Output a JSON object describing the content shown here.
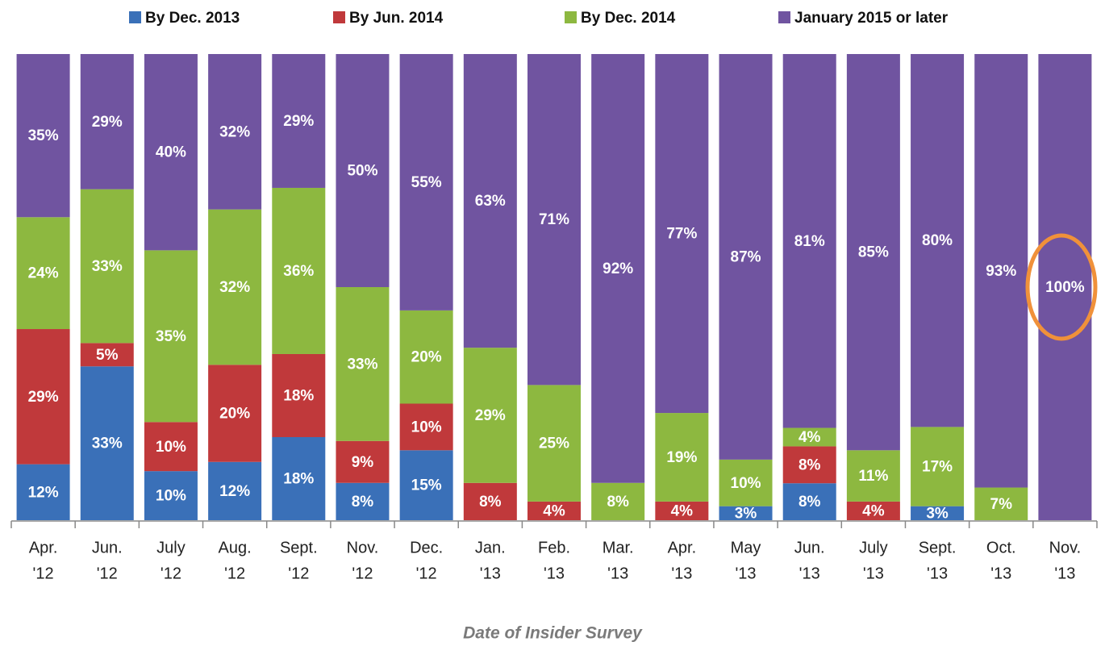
{
  "chart_data": {
    "type": "stacked_bar",
    "x_label": "Date of Insider Survey",
    "categories": [
      [
        "Apr.",
        "'12"
      ],
      [
        "Jun.",
        "'12"
      ],
      [
        "July",
        "'12"
      ],
      [
        "Aug.",
        "'12"
      ],
      [
        "Sept.",
        "'12"
      ],
      [
        "Nov.",
        "'12"
      ],
      [
        "Dec.",
        "'12"
      ],
      [
        "Jan.",
        "'13"
      ],
      [
        "Feb.",
        "'13"
      ],
      [
        "Mar.",
        "'13"
      ],
      [
        "Apr.",
        "'13"
      ],
      [
        "May",
        "'13"
      ],
      [
        "Jun.",
        "'13"
      ],
      [
        "July",
        "'13"
      ],
      [
        "Sept.",
        "'13"
      ],
      [
        "Oct.",
        "'13"
      ],
      [
        "Nov.",
        "'13"
      ]
    ],
    "series": [
      {
        "name": "By Dec. 2013",
        "color": "#3a70b8",
        "values": [
          12,
          33,
          10,
          12,
          18,
          8,
          15,
          null,
          null,
          null,
          null,
          3,
          8,
          null,
          3,
          null,
          null
        ],
        "value_labels": [
          "12%",
          "33%",
          "10%",
          "12%",
          "18%",
          "8%",
          "15%",
          null,
          null,
          null,
          null,
          "3%",
          "8%",
          null,
          "3%",
          null,
          null
        ]
      },
      {
        "name": "By Jun. 2014",
        "color": "#c0393b",
        "values": [
          29,
          5,
          10,
          20,
          18,
          9,
          10,
          8,
          4,
          null,
          4,
          null,
          8,
          4,
          null,
          null,
          null
        ],
        "value_labels": [
          "29%",
          "5%",
          "10%",
          "20%",
          "18%",
          "9%",
          "10%",
          "8%",
          "4%",
          null,
          "4%",
          null,
          "8%",
          "4%",
          null,
          null,
          null
        ]
      },
      {
        "name": "By Dec. 2014",
        "color": "#8db840",
        "values": [
          24,
          33,
          35,
          32,
          36,
          33,
          20,
          29,
          25,
          8,
          19,
          10,
          4,
          11,
          17,
          7,
          null
        ],
        "value_labels": [
          "24%",
          "33%",
          "35%",
          "32%",
          "36%",
          "33%",
          "20%",
          "29%",
          "25%",
          "8%",
          "19%",
          "10%",
          "4%",
          "11%",
          "17%",
          "7%",
          null
        ]
      },
      {
        "name": "January 2015 or later",
        "color": "#7054a0",
        "values": [
          35,
          29,
          40,
          32,
          29,
          50,
          55,
          63,
          71,
          92,
          77,
          87,
          81,
          85,
          80,
          93,
          100
        ],
        "value_labels": [
          "35%",
          "29%",
          "40%",
          "32%",
          "29%",
          "50%",
          "55%",
          "63%",
          "71%",
          "92%",
          "77%",
          "87%",
          "81%",
          "85%",
          "80%",
          "93%",
          "100%"
        ]
      }
    ]
  }
}
